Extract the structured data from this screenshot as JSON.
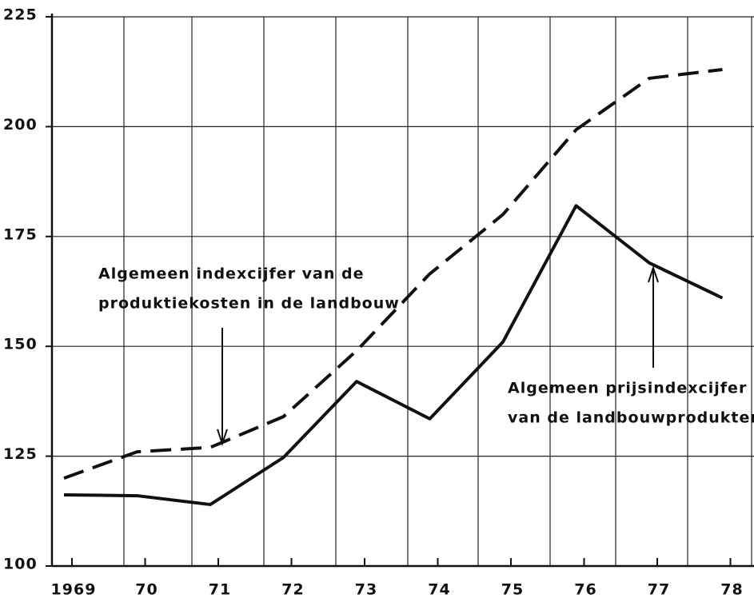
{
  "chart_data": {
    "type": "line",
    "categories": [
      "1969",
      "70",
      "71",
      "72",
      "73",
      "74",
      "75",
      "76",
      "77",
      "78"
    ],
    "series": [
      {
        "color": "#111111",
        "dashed": true,
        "values": [
          120,
          126,
          127,
          134,
          149,
          166.5,
          180,
          199.3,
          211,
          213
        ]
      },
      {
        "color": "#111111",
        "dashed": false,
        "values": [
          116.2,
          116,
          114,
          124.7,
          142,
          133.5,
          151,
          182,
          169,
          161
        ]
      }
    ],
    "annotations": [
      {
        "lines": [
          "Algemeen indexcijfer van de",
          "produktiekosten in de landbouw"
        ],
        "series": 0
      },
      {
        "lines": [
          "Algemeen prijsindexcijfer",
          "van de landbouwprodukten"
        ],
        "series": 1
      }
    ],
    "ylim": [
      100,
      225
    ],
    "yticks": [
      100,
      125,
      150,
      175,
      200,
      225
    ],
    "grid": true
  }
}
